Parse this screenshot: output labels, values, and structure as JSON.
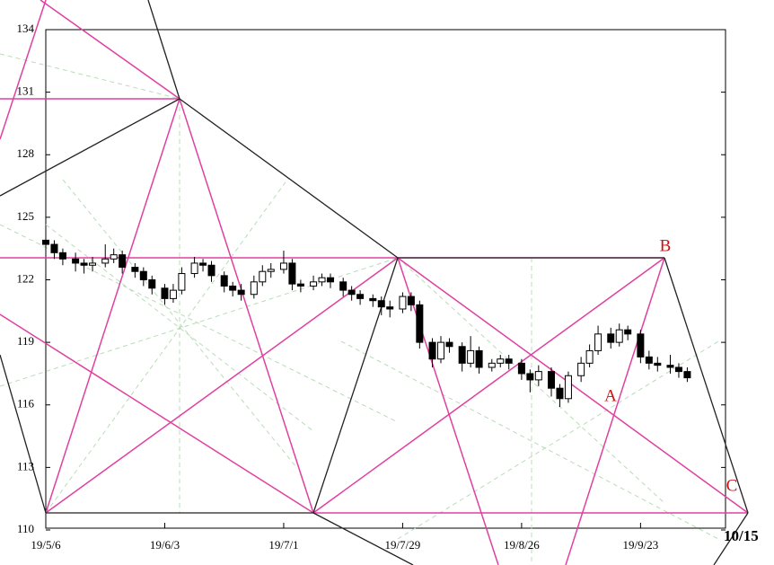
{
  "chart_data": {
    "type": "candlestick",
    "xlim": [
      0,
      160
    ],
    "xticks": [
      {
        "value": 0,
        "label": "19/5/6"
      },
      {
        "value": 28,
        "label": "19/6/3"
      },
      {
        "value": 56,
        "label": "19/7/1"
      },
      {
        "value": 84,
        "label": "19/7/29"
      },
      {
        "value": 112,
        "label": "19/8/26"
      },
      {
        "value": 140,
        "label": "19/9/23"
      }
    ],
    "ylim": [
      110,
      134
    ],
    "yticks": [
      110,
      113,
      116,
      119,
      122,
      125,
      128,
      131,
      134
    ],
    "x": [
      0,
      2,
      4,
      7,
      9,
      11,
      14,
      16,
      18,
      21,
      23,
      25,
      28,
      30,
      32,
      35,
      37,
      39,
      42,
      44,
      46,
      49,
      51,
      53,
      56,
      58,
      60,
      63,
      65,
      67,
      70,
      72,
      74,
      77,
      79,
      81,
      84,
      86,
      88,
      91,
      93,
      95,
      98,
      100,
      102,
      105,
      107,
      109,
      112,
      114,
      116,
      119,
      121,
      123,
      126,
      128,
      130,
      133,
      135,
      137,
      140,
      142,
      144,
      147,
      149,
      151
    ],
    "open": [
      123.9,
      123.7,
      123.3,
      123.0,
      122.8,
      122.7,
      122.8,
      123.0,
      123.2,
      122.6,
      122.4,
      122.0,
      121.6,
      121.1,
      121.5,
      122.3,
      122.8,
      122.7,
      122.2,
      121.7,
      121.5,
      121.3,
      121.9,
      122.4,
      122.5,
      122.8,
      121.8,
      121.7,
      121.9,
      122.1,
      121.9,
      121.5,
      121.3,
      121.1,
      121.0,
      120.7,
      120.6,
      121.2,
      120.8,
      119.0,
      118.2,
      119.0,
      118.8,
      118.0,
      118.6,
      117.8,
      118.0,
      118.2,
      118.0,
      117.5,
      117.2,
      117.6,
      116.8,
      116.3,
      117.4,
      118.0,
      118.6,
      119.4,
      119.0,
      119.6,
      119.4,
      118.3,
      118.0,
      117.9,
      117.8,
      117.6
    ],
    "high": [
      124.2,
      123.9,
      123.5,
      123.3,
      123.0,
      123.1,
      123.7,
      123.5,
      123.4,
      122.8,
      122.6,
      122.2,
      121.8,
      121.8,
      122.6,
      123.1,
      123.0,
      122.9,
      122.4,
      121.9,
      121.8,
      122.2,
      122.7,
      122.8,
      123.4,
      123.0,
      122.0,
      122.2,
      122.3,
      122.3,
      122.1,
      121.7,
      121.5,
      121.3,
      121.2,
      121.0,
      121.4,
      121.4,
      121.0,
      119.2,
      119.3,
      119.2,
      119.0,
      119.3,
      118.8,
      118.2,
      118.4,
      118.4,
      118.2,
      117.7,
      117.9,
      117.8,
      117.0,
      117.6,
      118.3,
      118.9,
      119.8,
      119.7,
      119.9,
      119.8,
      119.6,
      118.6,
      118.3,
      118.4,
      118.0,
      117.8
    ],
    "low": [
      123.4,
      123.0,
      122.7,
      122.4,
      122.3,
      122.4,
      122.6,
      122.8,
      122.3,
      122.1,
      121.7,
      121.3,
      120.8,
      120.9,
      121.3,
      122.1,
      122.4,
      121.9,
      121.4,
      121.2,
      121.0,
      121.1,
      121.7,
      122.1,
      122.3,
      121.5,
      121.4,
      121.5,
      121.7,
      121.6,
      121.2,
      121.0,
      120.8,
      120.7,
      120.3,
      120.2,
      120.4,
      120.5,
      118.7,
      117.8,
      118.0,
      118.5,
      117.6,
      117.8,
      117.5,
      117.6,
      117.8,
      117.7,
      117.2,
      116.6,
      116.9,
      116.4,
      115.9,
      116.1,
      117.1,
      117.8,
      118.4,
      118.7,
      118.8,
      119.1,
      118.0,
      117.7,
      117.6,
      117.5,
      117.3,
      117.1
    ],
    "close": [
      123.7,
      123.3,
      123.0,
      122.8,
      122.7,
      122.8,
      123.0,
      123.2,
      122.6,
      122.4,
      122.0,
      121.6,
      121.1,
      121.5,
      122.3,
      122.8,
      122.7,
      122.2,
      121.7,
      121.5,
      121.3,
      121.9,
      122.4,
      122.5,
      122.8,
      121.8,
      121.7,
      121.9,
      122.1,
      121.9,
      121.5,
      121.3,
      121.1,
      121.0,
      120.7,
      120.6,
      121.2,
      120.8,
      119.0,
      118.2,
      119.0,
      118.8,
      118.0,
      118.6,
      117.8,
      118.0,
      118.2,
      118.0,
      117.5,
      117.2,
      117.6,
      116.8,
      116.3,
      117.4,
      118.0,
      118.6,
      119.4,
      119.0,
      119.6,
      119.4,
      118.3,
      118.0,
      117.9,
      117.8,
      117.6,
      117.3
    ],
    "annotations": [
      "A",
      "B",
      "C"
    ],
    "end_label": "10/15"
  }
}
